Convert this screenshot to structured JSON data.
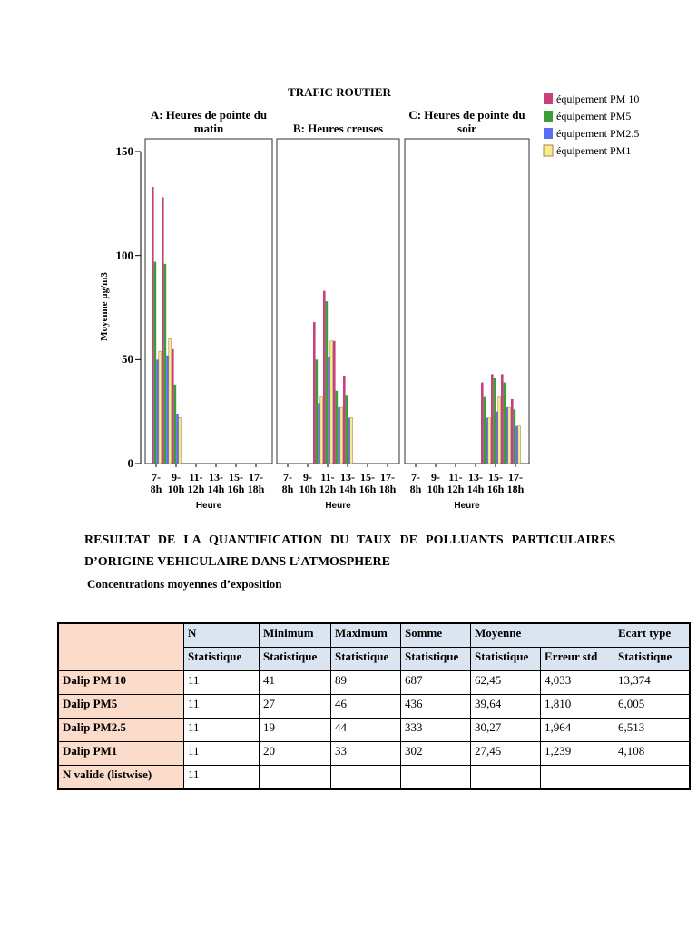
{
  "figure": {
    "title": "TRAFIC ROUTIER",
    "ylabel": "Moyenne µg/m3"
  },
  "chart_data": [
    {
      "type": "bar",
      "title": "A: Heures de pointe du matin",
      "xlabel": "Heure",
      "categories": [
        "7-8h",
        null,
        "9-10h",
        null,
        "11-12h",
        null,
        "13-14h",
        null,
        "15-16h",
        null,
        "17-18h",
        null
      ],
      "ylim": [
        0,
        150
      ],
      "yticks": [
        0,
        50,
        100,
        150
      ],
      "series": [
        {
          "name": "équipement PM 10",
          "color": "#c8417e",
          "values": [
            133,
            128,
            55,
            null,
            null,
            null,
            null,
            null,
            null,
            null,
            null,
            null
          ]
        },
        {
          "name": "équipement PM5",
          "color": "#3a9e3a",
          "values": [
            97,
            96,
            38,
            null,
            null,
            null,
            null,
            null,
            null,
            null,
            null,
            null
          ]
        },
        {
          "name": "équipement PM2.5",
          "color": "#5b6ef0",
          "values": [
            50,
            52,
            24,
            null,
            null,
            null,
            null,
            null,
            null,
            null,
            null,
            null
          ]
        },
        {
          "name": "équipement PM1",
          "color": "#f5f08a",
          "values": [
            54,
            60,
            22,
            null,
            null,
            null,
            null,
            null,
            null,
            null,
            null,
            null
          ]
        }
      ]
    },
    {
      "type": "bar",
      "title": "B: Heures creuses",
      "xlabel": "Heure",
      "categories": [
        "7-8h",
        null,
        "9-10h",
        null,
        "11-12h",
        null,
        "13-14h",
        null,
        "15-16h",
        null,
        "17-18h",
        null
      ],
      "ylim": [
        0,
        150
      ],
      "series": [
        {
          "name": "équipement PM 10",
          "color": "#c8417e",
          "values": [
            null,
            null,
            null,
            68,
            83,
            59,
            42,
            null,
            null,
            null,
            null,
            null
          ]
        },
        {
          "name": "équipement PM5",
          "color": "#3a9e3a",
          "values": [
            null,
            null,
            null,
            50,
            78,
            35,
            33,
            null,
            null,
            null,
            null,
            null
          ]
        },
        {
          "name": "équipement PM2.5",
          "color": "#5b6ef0",
          "values": [
            null,
            null,
            null,
            29,
            51,
            27,
            22,
            null,
            null,
            null,
            null,
            null
          ]
        },
        {
          "name": "équipement PM1",
          "color": "#f5f08a",
          "values": [
            null,
            null,
            null,
            32,
            59,
            27,
            22,
            null,
            null,
            null,
            null,
            null
          ]
        }
      ]
    },
    {
      "type": "bar",
      "title": "C: Heures de pointe du soir",
      "xlabel": "Heure",
      "categories": [
        "7-8h",
        null,
        "9-10h",
        null,
        "11-12h",
        null,
        "13-14h",
        null,
        "15-16h",
        null,
        "17-18h",
        null
      ],
      "ylim": [
        0,
        150
      ],
      "series": [
        {
          "name": "équipement PM 10",
          "color": "#c8417e",
          "values": [
            null,
            null,
            null,
            null,
            null,
            null,
            null,
            39,
            43,
            43,
            31,
            null
          ]
        },
        {
          "name": "équipement PM5",
          "color": "#3a9e3a",
          "values": [
            null,
            null,
            null,
            null,
            null,
            null,
            null,
            32,
            41,
            39,
            26,
            null
          ]
        },
        {
          "name": "équipement PM2.5",
          "color": "#5b6ef0",
          "values": [
            null,
            null,
            null,
            null,
            null,
            null,
            null,
            22,
            25,
            27,
            18,
            null
          ]
        },
        {
          "name": "équipement PM1",
          "color": "#f5f08a",
          "values": [
            null,
            null,
            null,
            null,
            null,
            null,
            null,
            22,
            32,
            27,
            18,
            null
          ]
        }
      ]
    }
  ],
  "heading": "RESULTAT DE LA QUANTIFICATION DU TAUX DE POLLUANTS PARTICULAIRES D’ORIGINE VEHICULAIRE DANS L’ATMOSPHERE",
  "subheading": "Concentrations moyennes d’exposition",
  "table": {
    "header": [
      "N",
      "Minimum",
      "Maximum",
      "Somme",
      "Moyenne",
      "Ecart type"
    ],
    "subheader": [
      "Statistique",
      "Statistique",
      "Statistique",
      "Statistique",
      "Statistique",
      "Erreur std",
      "Statistique"
    ],
    "rows": [
      [
        "Dalip PM 10",
        "11",
        "41",
        "89",
        "687",
        "62,45",
        "4,033",
        "13,374"
      ],
      [
        "Dalip PM5",
        "11",
        "27",
        "46",
        "436",
        "39,64",
        "1,810",
        "6,005"
      ],
      [
        "Dalip PM2.5",
        "11",
        "19",
        "44",
        "333",
        "30,27",
        "1,964",
        "6,513"
      ],
      [
        "Dalip PM1",
        "11",
        "20",
        "33",
        "302",
        "27,45",
        "1,239",
        "4,108"
      ],
      [
        "N valide (listwise)",
        "11"
      ]
    ]
  }
}
